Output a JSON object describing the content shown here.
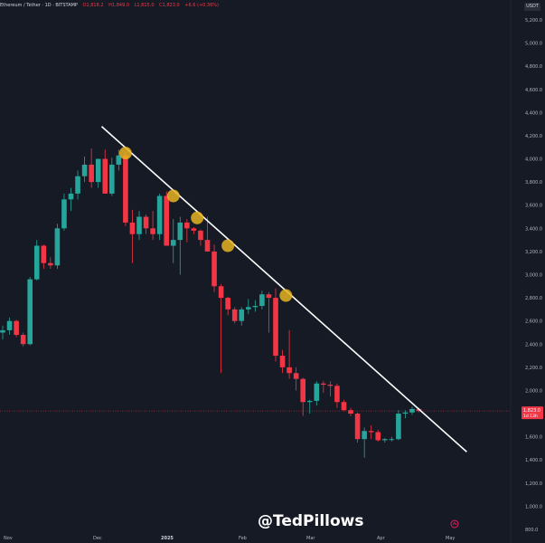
{
  "header": {
    "symbol": "Ethereum / Tether · 1D · BITSTAMP",
    "open": "O1,818.2",
    "high": "H1,849.0",
    "low": "L1,815.0",
    "close": "C1,823.0",
    "change": "+6.6 (+0.36%)"
  },
  "currency": "USDT",
  "watermark": "@TedPillows",
  "icons": {
    "logo": "tradingview-logo-icon"
  },
  "colors": {
    "up": "#26a69a",
    "down": "#f23645",
    "trendline": "#ffffff",
    "touch": "#e6b422",
    "background": "#161a25"
  },
  "chart_data": {
    "type": "candlestick",
    "title": "Ethereum / Tether · 1D · BITSTAMP",
    "y_axis": {
      "ylim": [
        800,
        5300
      ],
      "ticks": [
        5200,
        5000,
        4800,
        4600,
        4400,
        4200,
        4000,
        3800,
        3600,
        3400,
        3200,
        3000,
        2800,
        2600,
        2400,
        2200,
        2000,
        1800,
        1600,
        1400,
        1200,
        1000,
        800
      ],
      "tick_labels": [
        "5,200.0",
        "5,000.0",
        "4,800.0",
        "4,600.0",
        "4,400.0",
        "4,200.0",
        "4,000.0",
        "3,800.0",
        "3,600.0",
        "3,400.0",
        "3,200.0",
        "3,000.0",
        "2,800.0",
        "2,600.0",
        "2,400.0",
        "2,200.0",
        "2,000.0",
        "1,800.0",
        "1,600.0",
        "1,400.0",
        "1,200.0",
        "1,000.0",
        "800.0"
      ]
    },
    "x_axis": {
      "labels": [
        "Nov",
        "Dec",
        "2025",
        "Feb",
        "Mar",
        "Apr",
        "May"
      ],
      "bold": [
        "2025"
      ],
      "positions": [
        0,
        7,
        14,
        21,
        28,
        35,
        42
      ]
    },
    "current_price": {
      "value": 1823,
      "label": "1,823.0",
      "countdown": "1d 13h"
    },
    "candle_interval": "weekly",
    "candles": [
      {
        "o": 2500,
        "h": 2560,
        "l": 2440,
        "c": 2520
      },
      {
        "o": 2520,
        "h": 2630,
        "l": 2480,
        "c": 2600
      },
      {
        "o": 2600,
        "h": 2610,
        "l": 2460,
        "c": 2480
      },
      {
        "o": 2480,
        "h": 2500,
        "l": 2380,
        "c": 2400
      },
      {
        "o": 2400,
        "h": 2980,
        "l": 2390,
        "c": 2960
      },
      {
        "o": 2960,
        "h": 3300,
        "l": 2950,
        "c": 3250
      },
      {
        "o": 3250,
        "h": 3260,
        "l": 3050,
        "c": 3100
      },
      {
        "o": 3100,
        "h": 3150,
        "l": 3050,
        "c": 3080
      },
      {
        "o": 3080,
        "h": 3440,
        "l": 3050,
        "c": 3400
      },
      {
        "o": 3400,
        "h": 3700,
        "l": 3380,
        "c": 3650
      },
      {
        "o": 3650,
        "h": 3750,
        "l": 3550,
        "c": 3700
      },
      {
        "o": 3700,
        "h": 3900,
        "l": 3650,
        "c": 3850
      },
      {
        "o": 3850,
        "h": 4020,
        "l": 3800,
        "c": 3950
      },
      {
        "o": 3950,
        "h": 4090,
        "l": 3750,
        "c": 3800
      },
      {
        "o": 3800,
        "h": 4000,
        "l": 3750,
        "c": 4000
      },
      {
        "o": 4000,
        "h": 4080,
        "l": 3700,
        "c": 3700
      },
      {
        "o": 3700,
        "h": 4010,
        "l": 3680,
        "c": 3950
      },
      {
        "o": 3950,
        "h": 4080,
        "l": 3900,
        "c": 4030
      },
      {
        "o": 4030,
        "h": 4060,
        "l": 3420,
        "c": 3450
      },
      {
        "o": 3450,
        "h": 3560,
        "l": 3100,
        "c": 3350
      },
      {
        "o": 3350,
        "h": 3550,
        "l": 3300,
        "c": 3500
      },
      {
        "o": 3500,
        "h": 3520,
        "l": 3350,
        "c": 3400
      },
      {
        "o": 3400,
        "h": 3550,
        "l": 3300,
        "c": 3350
      },
      {
        "o": 3350,
        "h": 3700,
        "l": 3300,
        "c": 3680
      },
      {
        "o": 3680,
        "h": 3720,
        "l": 3250,
        "c": 3250
      },
      {
        "o": 3250,
        "h": 3480,
        "l": 3100,
        "c": 3300
      },
      {
        "o": 3300,
        "h": 3500,
        "l": 3000,
        "c": 3450
      },
      {
        "o": 3450,
        "h": 3480,
        "l": 3280,
        "c": 3400
      },
      {
        "o": 3400,
        "h": 3410,
        "l": 3350,
        "c": 3380
      },
      {
        "o": 3380,
        "h": 3390,
        "l": 3250,
        "c": 3300
      },
      {
        "o": 3300,
        "h": 3500,
        "l": 3200,
        "c": 3200
      },
      {
        "o": 3200,
        "h": 3260,
        "l": 2850,
        "c": 2900
      },
      {
        "o": 2900,
        "h": 2920,
        "l": 2150,
        "c": 2800
      },
      {
        "o": 2800,
        "h": 2810,
        "l": 2650,
        "c": 2700
      },
      {
        "o": 2700,
        "h": 2720,
        "l": 2580,
        "c": 2600
      },
      {
        "o": 2600,
        "h": 2720,
        "l": 2560,
        "c": 2700
      },
      {
        "o": 2700,
        "h": 2790,
        "l": 2660,
        "c": 2720
      },
      {
        "o": 2720,
        "h": 2780,
        "l": 2680,
        "c": 2730
      },
      {
        "o": 2730,
        "h": 2860,
        "l": 2700,
        "c": 2830
      },
      {
        "o": 2830,
        "h": 2850,
        "l": 2500,
        "c": 2800
      },
      {
        "o": 2800,
        "h": 2880,
        "l": 2250,
        "c": 2300
      },
      {
        "o": 2300,
        "h": 2350,
        "l": 2150,
        "c": 2200
      },
      {
        "o": 2200,
        "h": 2520,
        "l": 2100,
        "c": 2150
      },
      {
        "o": 2150,
        "h": 2200,
        "l": 2000,
        "c": 2100
      },
      {
        "o": 2100,
        "h": 2110,
        "l": 1780,
        "c": 1900
      },
      {
        "o": 1900,
        "h": 1920,
        "l": 1800,
        "c": 1910
      },
      {
        "o": 1910,
        "h": 2080,
        "l": 1870,
        "c": 2060
      },
      {
        "o": 2060,
        "h": 2080,
        "l": 1980,
        "c": 2050
      },
      {
        "o": 2050,
        "h": 2080,
        "l": 1950,
        "c": 2040
      },
      {
        "o": 2040,
        "h": 2060,
        "l": 1850,
        "c": 1900
      },
      {
        "o": 1900,
        "h": 1920,
        "l": 1820,
        "c": 1830
      },
      {
        "o": 1830,
        "h": 1850,
        "l": 1780,
        "c": 1800
      },
      {
        "o": 1800,
        "h": 1810,
        "l": 1550,
        "c": 1580
      },
      {
        "o": 1580,
        "h": 1680,
        "l": 1420,
        "c": 1650
      },
      {
        "o": 1650,
        "h": 1700,
        "l": 1580,
        "c": 1640
      },
      {
        "o": 1640,
        "h": 1660,
        "l": 1560,
        "c": 1570
      },
      {
        "o": 1570,
        "h": 1590,
        "l": 1550,
        "c": 1580
      },
      {
        "o": 1580,
        "h": 1600,
        "l": 1560,
        "c": 1580
      },
      {
        "o": 1580,
        "h": 1830,
        "l": 1570,
        "c": 1800
      },
      {
        "o": 1800,
        "h": 1830,
        "l": 1760,
        "c": 1810
      },
      {
        "o": 1810,
        "h": 1860,
        "l": 1790,
        "c": 1840
      },
      {
        "o": 1840,
        "h": 1850,
        "l": 1810,
        "c": 1823
      }
    ],
    "trendline": {
      "start": {
        "i": 14.5,
        "price": 4280
      },
      "end": {
        "i": 68,
        "price": 1470
      }
    },
    "touch_points": [
      {
        "i": 18,
        "price": 4050
      },
      {
        "i": 25,
        "price": 3680
      },
      {
        "i": 28.5,
        "price": 3490
      },
      {
        "i": 33,
        "price": 3250
      },
      {
        "i": 41.5,
        "price": 2820
      }
    ]
  }
}
